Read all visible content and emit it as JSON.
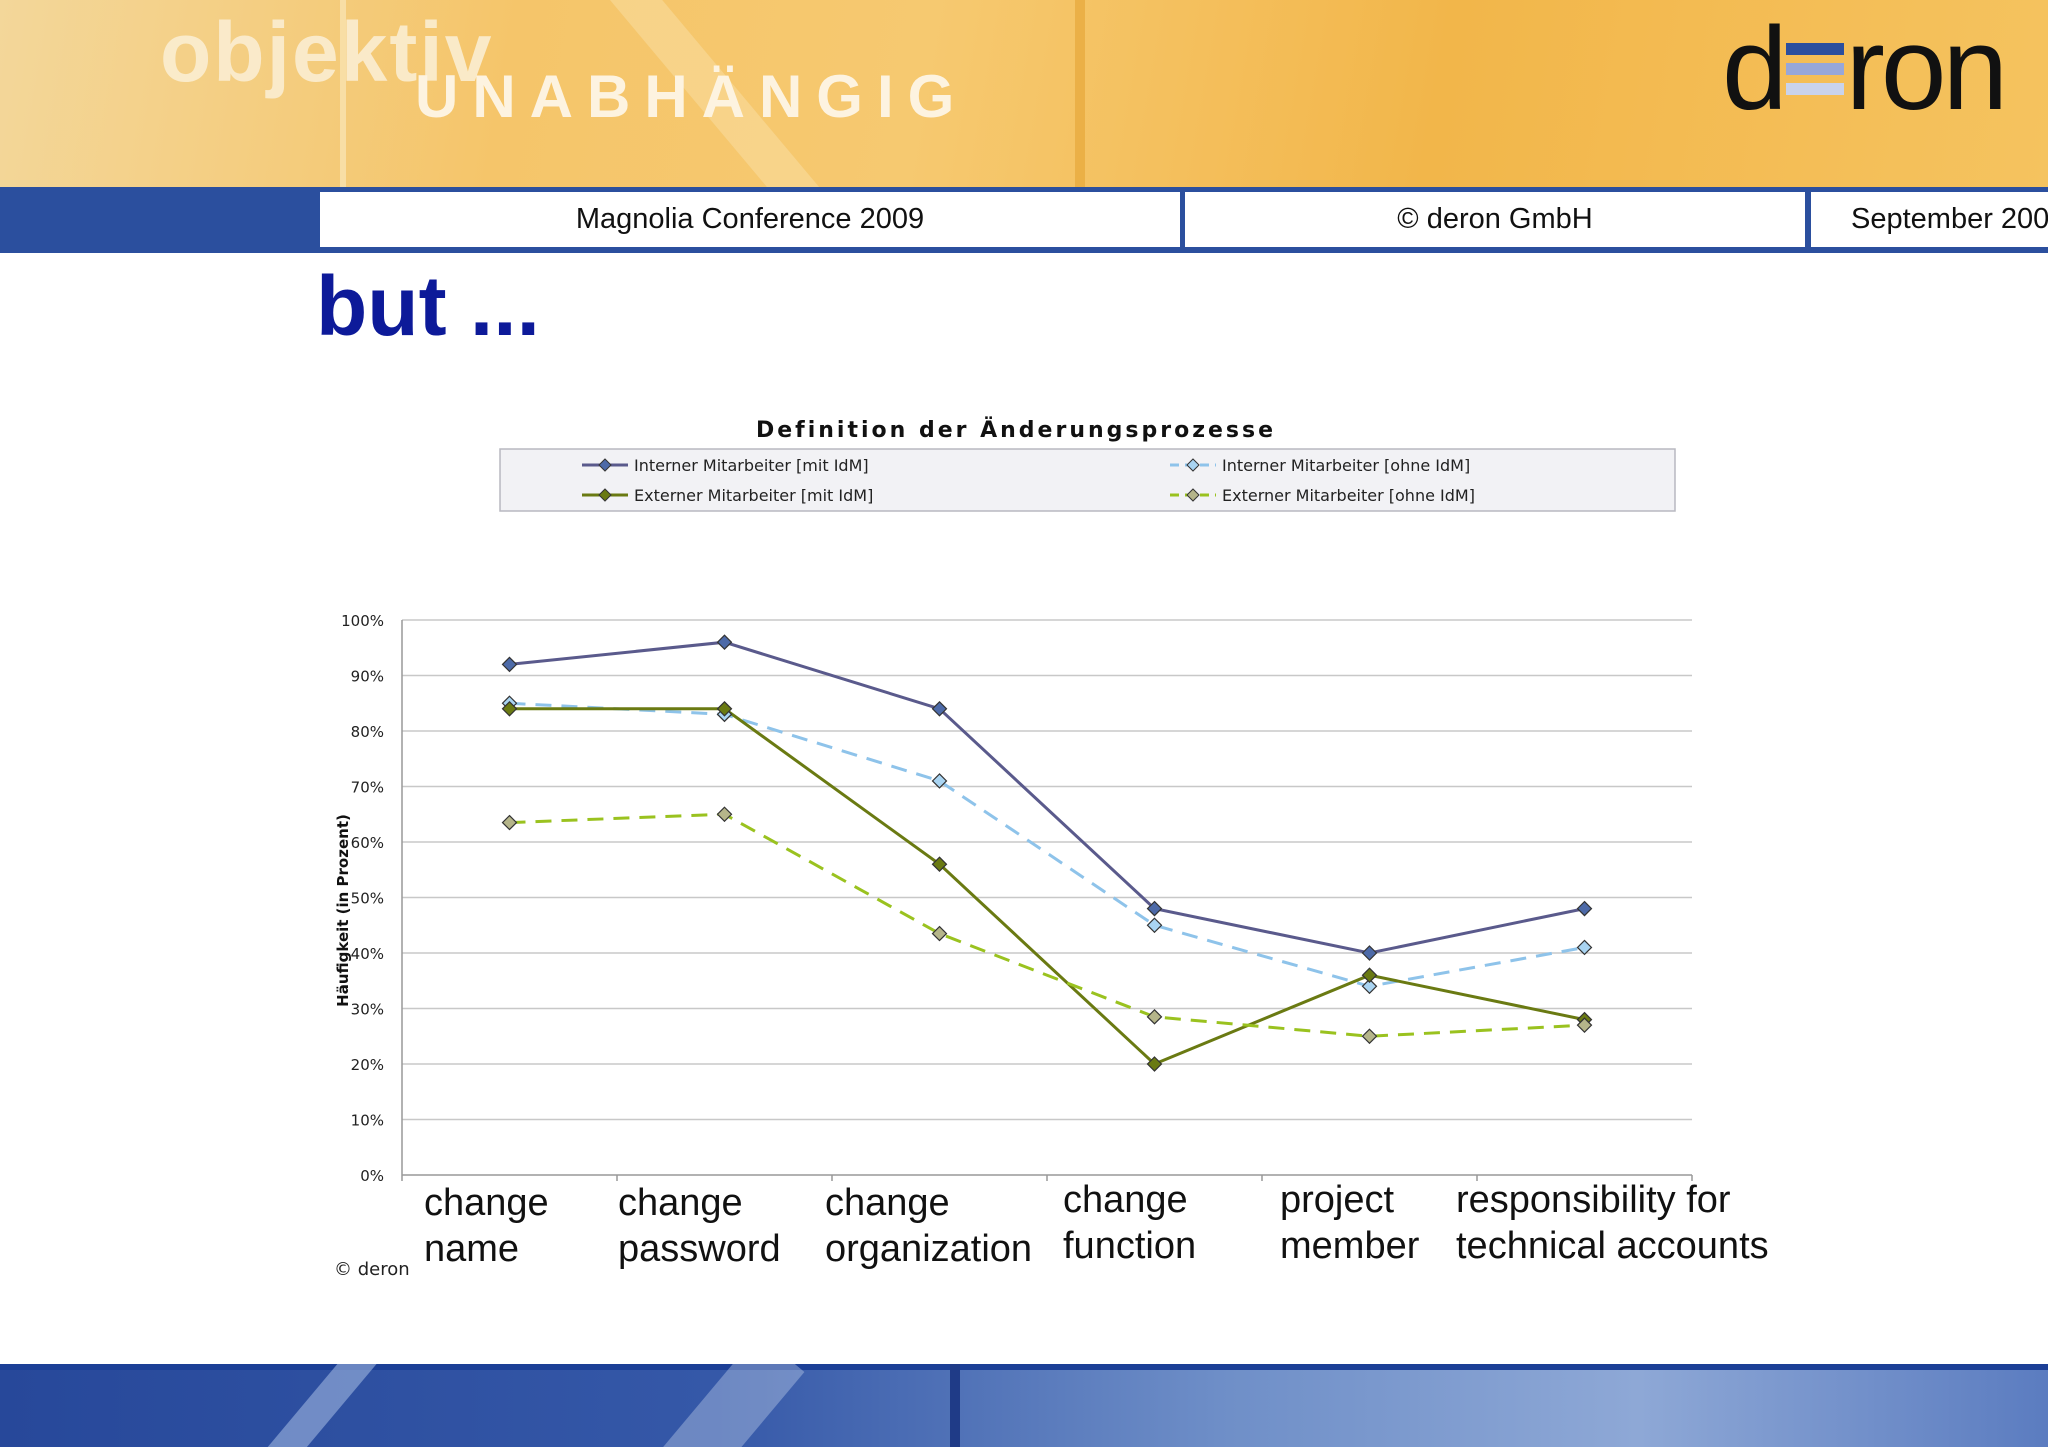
{
  "banner": {
    "tagline_top": "objektiv",
    "tagline_bottom": "UNABHÄNGIG",
    "logo_left": "d",
    "logo_right": "ron",
    "logo_bar_colors": [
      "#2b4f9e",
      "#97a7d8",
      "#c9d3ec"
    ]
  },
  "header": {
    "conference": "Magnolia Conference 2009",
    "copyright": "© deron GmbH",
    "date": "September 200"
  },
  "slide": {
    "title": "but ...",
    "source_note": "© deron"
  },
  "chart_data": {
    "type": "line",
    "title": "Definition der Änderungsprozesse",
    "ylabel": "Häufigkeit (in Prozent)",
    "xlabel": "",
    "ylim": [
      0,
      100
    ],
    "yticks": [
      "0%",
      "10%",
      "20%",
      "30%",
      "40%",
      "50%",
      "60%",
      "70%",
      "80%",
      "90%",
      "100%"
    ],
    "categories": [
      [
        "change",
        "name"
      ],
      [
        "change",
        "password"
      ],
      [
        "change",
        "organization"
      ],
      [
        "change",
        "function"
      ],
      [
        "project",
        "member"
      ],
      [
        "responsibility for",
        "technical accounts"
      ]
    ],
    "legend_position": "top",
    "series": [
      {
        "name": "Interner Mitarbeiter [mit IdM]",
        "values": [
          92,
          96,
          84,
          48,
          40,
          48
        ],
        "color": "#5a5a8c",
        "marker_fill": "#4d6aa8",
        "dashed": false
      },
      {
        "name": "Interner Mitarbeiter [ohne IdM]",
        "values": [
          85,
          83,
          71,
          45,
          34,
          41
        ],
        "color": "#8ec3ea",
        "marker_fill": "#a9d4f2",
        "dashed": true
      },
      {
        "name": "Externer Mitarbeiter [mit IdM]",
        "values": [
          84,
          84,
          56,
          20,
          36,
          28
        ],
        "color": "#6a7a12",
        "marker_fill": "#6a7a12",
        "dashed": false
      },
      {
        "name": "Externer Mitarbeiter [ohne IdM]",
        "values": [
          63.5,
          65,
          43.5,
          28.5,
          25,
          27
        ],
        "color": "#9ac21f",
        "marker_fill": "#b5b58a",
        "dashed": true
      }
    ]
  }
}
